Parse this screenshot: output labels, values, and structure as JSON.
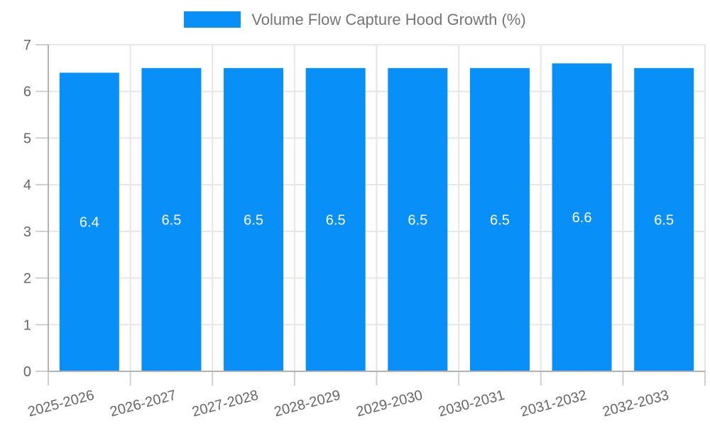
{
  "legend": {
    "label": "Volume Flow Capture Hood Growth (%)"
  },
  "chart_data": {
    "type": "bar",
    "title": "Volume Flow Capture Hood Growth (%)",
    "categories": [
      "2025-2026",
      "2026-2027",
      "2027-2028",
      "2028-2029",
      "2029-2030",
      "2030-2031",
      "2031-2032",
      "2032-2033"
    ],
    "values": [
      6.4,
      6.5,
      6.5,
      6.5,
      6.5,
      6.5,
      6.6,
      6.5
    ],
    "value_labels": [
      "6.4",
      "6.5",
      "6.5",
      "6.5",
      "6.5",
      "6.5",
      "6.6",
      "6.5"
    ],
    "xlabel": "",
    "ylabel": "",
    "ylim": [
      0,
      7
    ],
    "yticks": [
      0,
      1,
      2,
      3,
      4,
      5,
      6,
      7
    ],
    "grid": true,
    "legend_position": "top",
    "x_tick_rotation_deg": -15,
    "colors": {
      "bar": "#0890f8",
      "gridline": "#e6e6e6",
      "tick_mark": "#cfcfcf",
      "axis_border": "#b3b3b3",
      "tick_label": "#666666",
      "legend_label": "#757575",
      "value_label": "#ffffff",
      "background": "#ffffff"
    }
  }
}
